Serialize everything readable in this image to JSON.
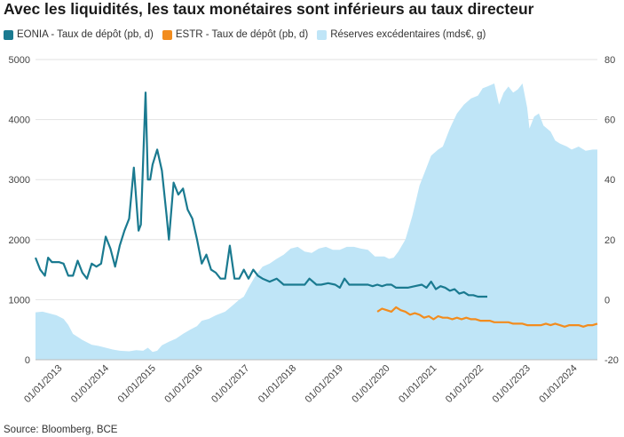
{
  "header": {
    "title": "Avec les liquidités, les taux monétaires sont inférieurs au taux directeur"
  },
  "legend": [
    {
      "label": "EONIA - Taux de dépôt (pb, d)",
      "color": "#1a7a90"
    },
    {
      "label": "ESTR - Taux de dépôt (pb, d)",
      "color": "#f28c1e"
    },
    {
      "label": "Réserves excédentaires (mds€, g)",
      "color": "#bfe5f7"
    }
  ],
  "footer": {
    "source": "Source: Bloomberg, BCE"
  },
  "chart_data": {
    "type": "line",
    "title": "Avec les liquidités, les taux monétaires sont inférieurs au taux directeur",
    "x_ticks": [
      "01/01/2013",
      "01/01/2014",
      "01/01/2015",
      "01/01/2016",
      "01/01/2017",
      "01/01/2018",
      "01/01/2019",
      "01/01/2020",
      "01/01/2021",
      "01/01/2022",
      "01/01/2023",
      "01/01/2024"
    ],
    "x_range": [
      2012.5,
      2024.5
    ],
    "y_left": {
      "range": [
        0,
        5000
      ],
      "ticks": [
        "0",
        "1000",
        "2000",
        "3000",
        "4000",
        "5000"
      ]
    },
    "y_right": {
      "range": [
        -20,
        80
      ],
      "ticks": [
        "-20",
        "0",
        "20",
        "40",
        "60",
        "80"
      ]
    },
    "grid": true,
    "legend_position": "top-left",
    "series": [
      {
        "name": "Réserves excédentaires (mds€, g)",
        "axis": "left",
        "kind": "area",
        "color": "#bfe5f7",
        "points": [
          [
            2012.5,
            790
          ],
          [
            2012.65,
            800
          ],
          [
            2012.8,
            770
          ],
          [
            2012.95,
            740
          ],
          [
            2013.1,
            680
          ],
          [
            2013.2,
            580
          ],
          [
            2013.3,
            430
          ],
          [
            2013.5,
            330
          ],
          [
            2013.7,
            250
          ],
          [
            2013.85,
            230
          ],
          [
            2014.0,
            200
          ],
          [
            2014.15,
            170
          ],
          [
            2014.3,
            150
          ],
          [
            2014.5,
            140
          ],
          [
            2014.65,
            160
          ],
          [
            2014.8,
            150
          ],
          [
            2014.9,
            200
          ],
          [
            2015.0,
            130
          ],
          [
            2015.1,
            150
          ],
          [
            2015.2,
            240
          ],
          [
            2015.35,
            300
          ],
          [
            2015.5,
            350
          ],
          [
            2015.65,
            430
          ],
          [
            2015.8,
            500
          ],
          [
            2015.95,
            560
          ],
          [
            2016.05,
            650
          ],
          [
            2016.2,
            680
          ],
          [
            2016.35,
            740
          ],
          [
            2016.55,
            800
          ],
          [
            2016.7,
            900
          ],
          [
            2016.85,
            1000
          ],
          [
            2016.95,
            1050
          ],
          [
            2017.05,
            1200
          ],
          [
            2017.2,
            1400
          ],
          [
            2017.35,
            1550
          ],
          [
            2017.5,
            1600
          ],
          [
            2017.65,
            1680
          ],
          [
            2017.8,
            1750
          ],
          [
            2017.95,
            1850
          ],
          [
            2018.1,
            1880
          ],
          [
            2018.25,
            1800
          ],
          [
            2018.4,
            1780
          ],
          [
            2018.55,
            1850
          ],
          [
            2018.7,
            1880
          ],
          [
            2018.85,
            1830
          ],
          [
            2019.0,
            1830
          ],
          [
            2019.15,
            1880
          ],
          [
            2019.3,
            1880
          ],
          [
            2019.45,
            1850
          ],
          [
            2019.6,
            1830
          ],
          [
            2019.75,
            1720
          ],
          [
            2019.95,
            1720
          ],
          [
            2020.05,
            1680
          ],
          [
            2020.15,
            1700
          ],
          [
            2020.25,
            1800
          ],
          [
            2020.4,
            2000
          ],
          [
            2020.55,
            2400
          ],
          [
            2020.7,
            2900
          ],
          [
            2020.85,
            3200
          ],
          [
            2020.95,
            3400
          ],
          [
            2021.1,
            3500
          ],
          [
            2021.2,
            3550
          ],
          [
            2021.35,
            3850
          ],
          [
            2021.5,
            4100
          ],
          [
            2021.65,
            4250
          ],
          [
            2021.8,
            4350
          ],
          [
            2021.95,
            4400
          ],
          [
            2022.05,
            4520
          ],
          [
            2022.15,
            4550
          ],
          [
            2022.3,
            4600
          ],
          [
            2022.4,
            4250
          ],
          [
            2022.5,
            4450
          ],
          [
            2022.6,
            4550
          ],
          [
            2022.7,
            4450
          ],
          [
            2022.8,
            4500
          ],
          [
            2022.9,
            4600
          ],
          [
            2023.0,
            4200
          ],
          [
            2023.05,
            3850
          ],
          [
            2023.15,
            4050
          ],
          [
            2023.25,
            4100
          ],
          [
            2023.35,
            3900
          ],
          [
            2023.5,
            3800
          ],
          [
            2023.6,
            3650
          ],
          [
            2023.7,
            3600
          ],
          [
            2023.85,
            3550
          ],
          [
            2023.95,
            3500
          ],
          [
            2024.1,
            3550
          ],
          [
            2024.25,
            3480
          ],
          [
            2024.4,
            3500
          ],
          [
            2024.5,
            3500
          ]
        ]
      },
      {
        "name": "EONIA - Taux de dépôt (pb, d)",
        "axis": "right",
        "kind": "line",
        "color": "#1a7a90",
        "points": [
          [
            2012.5,
            14
          ],
          [
            2012.6,
            10
          ],
          [
            2012.7,
            8
          ],
          [
            2012.77,
            14
          ],
          [
            2012.85,
            12.5
          ],
          [
            2013.0,
            12.5
          ],
          [
            2013.1,
            12
          ],
          [
            2013.2,
            8
          ],
          [
            2013.3,
            8
          ],
          [
            2013.4,
            13
          ],
          [
            2013.5,
            9
          ],
          [
            2013.6,
            7
          ],
          [
            2013.7,
            12
          ],
          [
            2013.8,
            11
          ],
          [
            2013.9,
            12
          ],
          [
            2014.0,
            21
          ],
          [
            2014.1,
            17
          ],
          [
            2014.2,
            11
          ],
          [
            2014.3,
            18
          ],
          [
            2014.4,
            23
          ],
          [
            2014.5,
            27
          ],
          [
            2014.6,
            44
          ],
          [
            2014.7,
            23
          ],
          [
            2014.75,
            25
          ],
          [
            2014.85,
            69
          ],
          [
            2014.9,
            40
          ],
          [
            2014.95,
            40
          ],
          [
            2015.0,
            45
          ],
          [
            2015.1,
            50
          ],
          [
            2015.2,
            43
          ],
          [
            2015.3,
            28
          ],
          [
            2015.35,
            20
          ],
          [
            2015.45,
            39
          ],
          [
            2015.55,
            35
          ],
          [
            2015.65,
            37
          ],
          [
            2015.75,
            30
          ],
          [
            2015.85,
            27
          ],
          [
            2015.95,
            20
          ],
          [
            2016.05,
            12
          ],
          [
            2016.15,
            15
          ],
          [
            2016.25,
            10
          ],
          [
            2016.35,
            9
          ],
          [
            2016.45,
            7
          ],
          [
            2016.55,
            7
          ],
          [
            2016.65,
            18
          ],
          [
            2016.75,
            7
          ],
          [
            2016.85,
            7
          ],
          [
            2016.95,
            10
          ],
          [
            2017.05,
            7
          ],
          [
            2017.15,
            10
          ],
          [
            2017.25,
            8
          ],
          [
            2017.35,
            7
          ],
          [
            2017.5,
            6
          ],
          [
            2017.65,
            7
          ],
          [
            2017.8,
            5
          ],
          [
            2017.95,
            5
          ],
          [
            2018.1,
            5
          ],
          [
            2018.25,
            5
          ],
          [
            2018.35,
            7
          ],
          [
            2018.5,
            5
          ],
          [
            2018.6,
            5
          ],
          [
            2018.75,
            5.5
          ],
          [
            2018.9,
            5
          ],
          [
            2019.0,
            4
          ],
          [
            2019.1,
            7
          ],
          [
            2019.2,
            5
          ],
          [
            2019.3,
            5
          ],
          [
            2019.4,
            5
          ],
          [
            2019.5,
            5
          ],
          [
            2019.6,
            5
          ],
          [
            2019.7,
            4.5
          ],
          [
            2019.8,
            5
          ],
          [
            2019.9,
            4.5
          ],
          [
            2020.0,
            5
          ],
          [
            2020.1,
            5
          ],
          [
            2020.2,
            4
          ],
          [
            2020.3,
            4
          ],
          [
            2020.45,
            4
          ],
          [
            2020.6,
            4.5
          ],
          [
            2020.75,
            5
          ],
          [
            2020.85,
            4
          ],
          [
            2020.95,
            6
          ],
          [
            2021.05,
            3.5
          ],
          [
            2021.15,
            4.5
          ],
          [
            2021.25,
            4
          ],
          [
            2021.35,
            3
          ],
          [
            2021.45,
            3.5
          ],
          [
            2021.55,
            2
          ],
          [
            2021.65,
            2.5
          ],
          [
            2021.75,
            1.5
          ],
          [
            2021.85,
            1.5
          ],
          [
            2021.95,
            1
          ],
          [
            2022.05,
            1
          ],
          [
            2022.15,
            1
          ]
        ]
      },
      {
        "name": "ESTR - Taux de dépôt (pb, d)",
        "axis": "right",
        "kind": "line",
        "color": "#f28c1e",
        "points": [
          [
            2019.8,
            -4
          ],
          [
            2019.9,
            -3
          ],
          [
            2020.0,
            -3.5
          ],
          [
            2020.1,
            -4
          ],
          [
            2020.2,
            -2.5
          ],
          [
            2020.3,
            -3.5
          ],
          [
            2020.4,
            -4
          ],
          [
            2020.5,
            -5
          ],
          [
            2020.6,
            -4.5
          ],
          [
            2020.7,
            -5
          ],
          [
            2020.8,
            -6
          ],
          [
            2020.9,
            -5.5
          ],
          [
            2021.0,
            -6.5
          ],
          [
            2021.1,
            -5.5
          ],
          [
            2021.2,
            -6
          ],
          [
            2021.3,
            -6
          ],
          [
            2021.4,
            -6.5
          ],
          [
            2021.5,
            -6
          ],
          [
            2021.6,
            -6.5
          ],
          [
            2021.7,
            -6
          ],
          [
            2021.8,
            -6.5
          ],
          [
            2021.9,
            -6.5
          ],
          [
            2022.0,
            -7
          ],
          [
            2022.1,
            -7
          ],
          [
            2022.2,
            -7
          ],
          [
            2022.3,
            -7.5
          ],
          [
            2022.4,
            -7.5
          ],
          [
            2022.5,
            -7.5
          ],
          [
            2022.6,
            -7.5
          ],
          [
            2022.7,
            -8
          ],
          [
            2022.8,
            -8
          ],
          [
            2022.9,
            -8
          ],
          [
            2023.0,
            -8.5
          ],
          [
            2023.1,
            -8.5
          ],
          [
            2023.2,
            -8.5
          ],
          [
            2023.3,
            -8.5
          ],
          [
            2023.4,
            -8
          ],
          [
            2023.5,
            -8.5
          ],
          [
            2023.6,
            -8
          ],
          [
            2023.7,
            -8.5
          ],
          [
            2023.8,
            -9
          ],
          [
            2023.9,
            -8.5
          ],
          [
            2024.0,
            -8.5
          ],
          [
            2024.1,
            -8.5
          ],
          [
            2024.2,
            -9
          ],
          [
            2024.3,
            -8.5
          ],
          [
            2024.4,
            -8.5
          ],
          [
            2024.5,
            -8
          ]
        ]
      }
    ]
  }
}
